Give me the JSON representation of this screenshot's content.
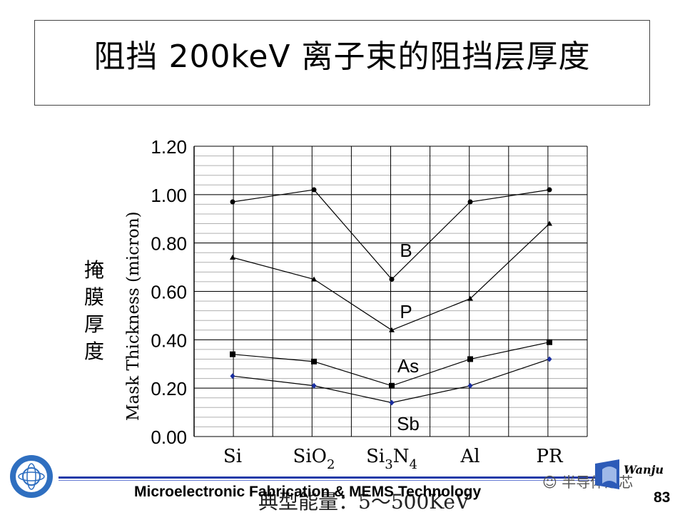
{
  "title": "阻挡 200keV 离子束的阻挡层厚度",
  "y_label_cn": "掩膜厚度",
  "footer": {
    "course": "Microelectronic Fabrication & MEMS Technology",
    "energy_note": "典型能量：5～500KeV",
    "page_number": "83",
    "watermark": "半导体之芯",
    "logo_right_text": "Wanjun"
  },
  "colors": {
    "line": "#000000",
    "sb_marker": "#1a2ea0",
    "footer_line": "#1f3aa8"
  },
  "chart_data": {
    "type": "line",
    "ylabel": "Mask Thickness (micron)",
    "categories": [
      "Si",
      "SiO2",
      "Si3N4",
      "Al",
      "PR"
    ],
    "category_labels": [
      {
        "main": "Si",
        "sub": ""
      },
      {
        "main": "SiO",
        "sub": "2"
      },
      {
        "main": "Si",
        "sub": "3",
        "main2": "N",
        "sub2": "4"
      },
      {
        "main": "Al",
        "sub": ""
      },
      {
        "main": "PR",
        "sub": ""
      }
    ],
    "ylim": [
      0,
      1.2
    ],
    "yticks": [
      "0.00",
      "0.20",
      "0.40",
      "0.60",
      "0.80",
      "1.00",
      "1.20"
    ],
    "grid": true,
    "series": [
      {
        "name": "B",
        "values": [
          0.97,
          1.02,
          0.65,
          0.97,
          1.02
        ],
        "marker": "dot"
      },
      {
        "name": "P",
        "values": [
          0.74,
          0.65,
          0.44,
          0.57,
          0.88
        ],
        "marker": "triangle"
      },
      {
        "name": "As",
        "values": [
          0.34,
          0.31,
          0.21,
          0.32,
          0.39
        ],
        "marker": "square"
      },
      {
        "name": "Sb",
        "values": [
          0.25,
          0.21,
          0.14,
          0.21,
          0.32
        ],
        "marker": "diamond"
      }
    ]
  }
}
